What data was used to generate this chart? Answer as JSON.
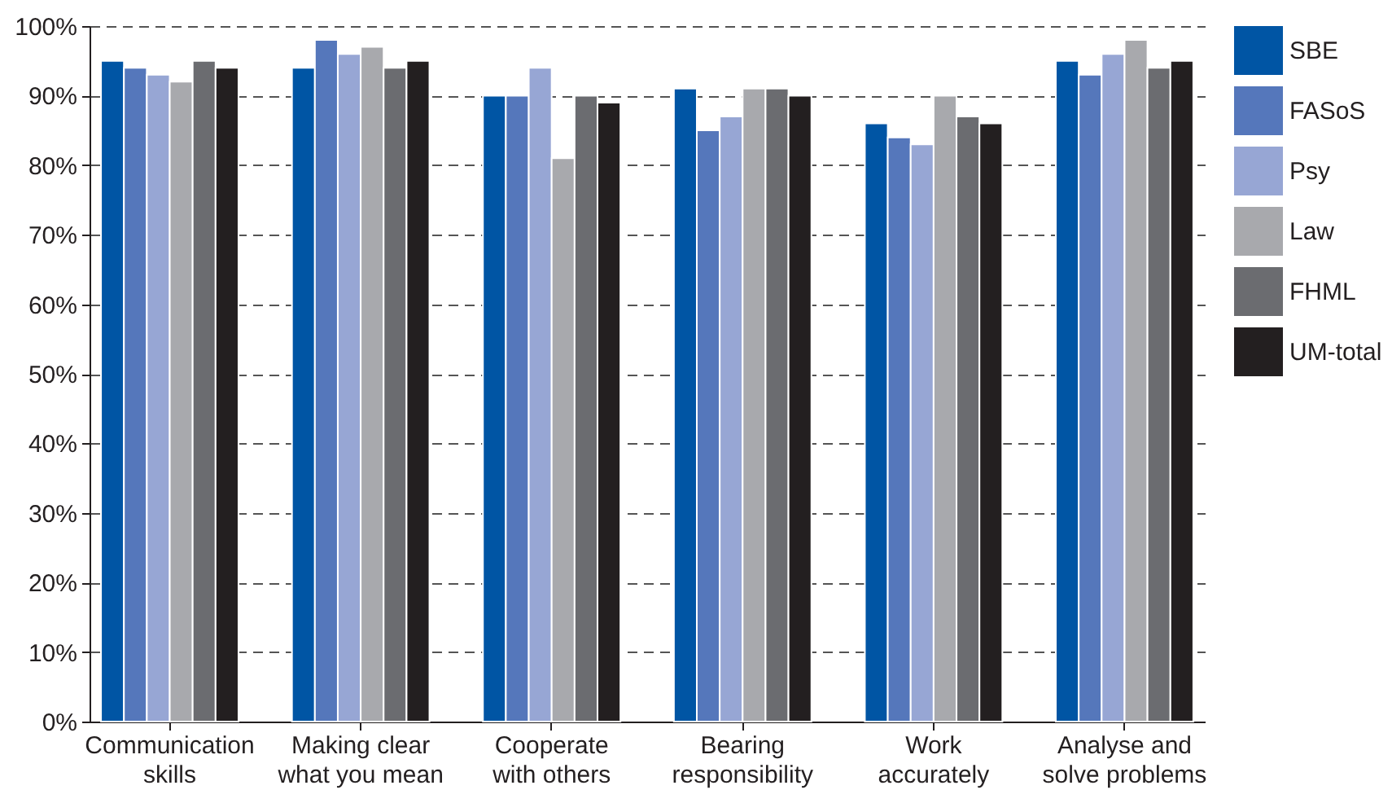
{
  "chart_data": {
    "type": "bar",
    "categories": [
      "Communication\nskills",
      "Making clear\nwhat you mean",
      "Cooperate\nwith others",
      "Bearing\nresponsibility",
      "Work\naccurately",
      "Analyse and\nsolve problems"
    ],
    "series": [
      {
        "name": "SBE",
        "color": "#0055a4",
        "values": [
          95,
          94,
          90,
          91,
          86,
          95
        ]
      },
      {
        "name": "FASoS",
        "color": "#5577bb",
        "values": [
          94,
          98,
          90,
          85,
          84,
          93
        ]
      },
      {
        "name": "Psy",
        "color": "#97a6d4",
        "values": [
          93,
          96,
          94,
          87,
          83,
          96
        ]
      },
      {
        "name": "Law",
        "color": "#a8a9ad",
        "values": [
          92,
          97,
          81,
          91,
          90,
          98
        ]
      },
      {
        "name": "FHML",
        "color": "#6b6c70",
        "values": [
          95,
          94,
          90,
          91,
          87,
          94
        ]
      },
      {
        "name": "UM-total",
        "color": "#231f20",
        "values": [
          94,
          95,
          89,
          90,
          86,
          95
        ]
      }
    ],
    "ylim": [
      0,
      100
    ],
    "yticks": [
      {
        "value": 0,
        "label": "0%"
      },
      {
        "value": 10,
        "label": "10%"
      },
      {
        "value": 20,
        "label": "20%"
      },
      {
        "value": 30,
        "label": "30%"
      },
      {
        "value": 40,
        "label": "40%"
      },
      {
        "value": 50,
        "label": "50%"
      },
      {
        "value": 60,
        "label": "60%"
      },
      {
        "value": 70,
        "label": "70%"
      },
      {
        "value": 80,
        "label": "80%"
      },
      {
        "value": 90,
        "label": "90%"
      },
      {
        "value": 100,
        "label": "100%"
      }
    ],
    "grid": "y",
    "legend": "right"
  }
}
